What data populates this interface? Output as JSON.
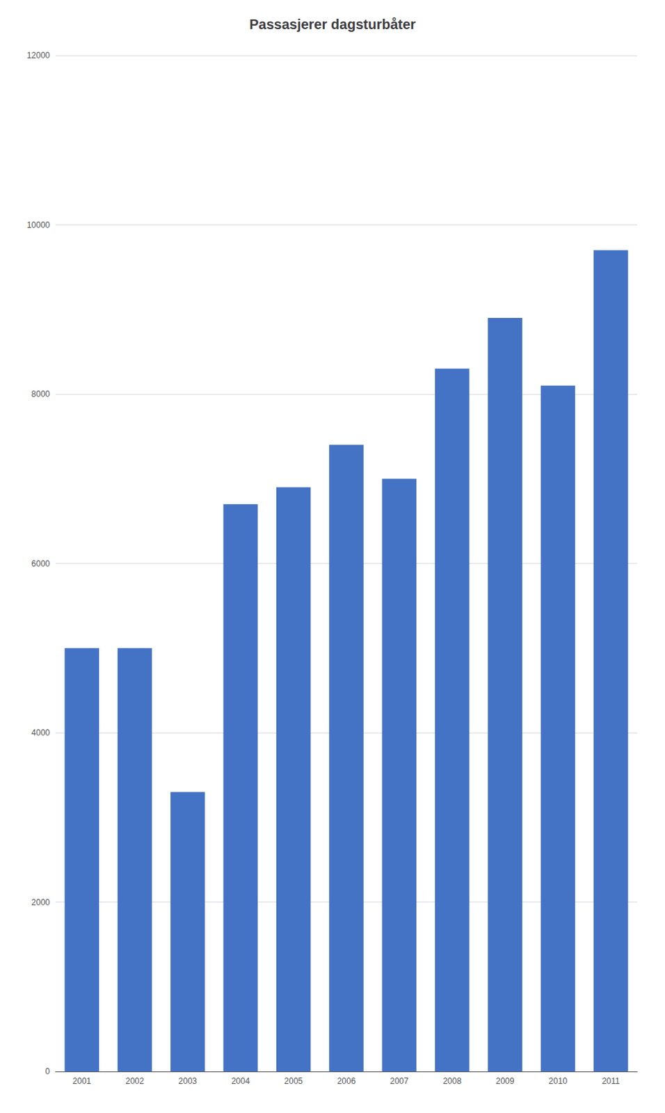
{
  "chart_data": {
    "type": "bar",
    "title": "Passasjerer dagsturbåter",
    "categories": [
      "2001",
      "2002",
      "2003",
      "2004",
      "2005",
      "2006",
      "2007",
      "2008",
      "2009",
      "2010",
      "2011"
    ],
    "values": [
      5000,
      5000,
      3300,
      6700,
      6900,
      7400,
      7000,
      8300,
      8900,
      8100,
      9700
    ],
    "color": "#4472C4",
    "ylim": [
      0,
      12000
    ],
    "yticks": [
      0,
      2000,
      4000,
      6000,
      8000,
      10000,
      12000
    ],
    "grid": true
  }
}
